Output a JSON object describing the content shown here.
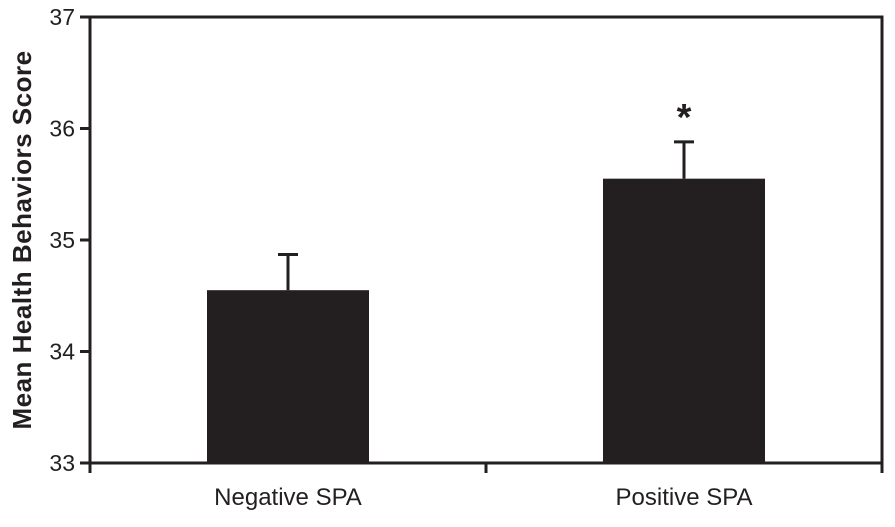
{
  "chart_data": {
    "type": "bar",
    "categories": [
      "Negative SPA",
      "Positive SPA"
    ],
    "values": [
      34.55,
      35.55
    ],
    "errors_plus": [
      0.32,
      0.33
    ],
    "significance_markers": [
      "",
      "*"
    ],
    "title": "",
    "xlabel": "",
    "ylabel": "Mean Health Behaviors Score",
    "ylim": [
      33,
      37
    ],
    "yticks": [
      33,
      34,
      35,
      36,
      37
    ],
    "grid": false,
    "legend_position": "none",
    "bar_color": "#231f20",
    "axis_color": "#231f20",
    "background_color": "#ffffff"
  }
}
